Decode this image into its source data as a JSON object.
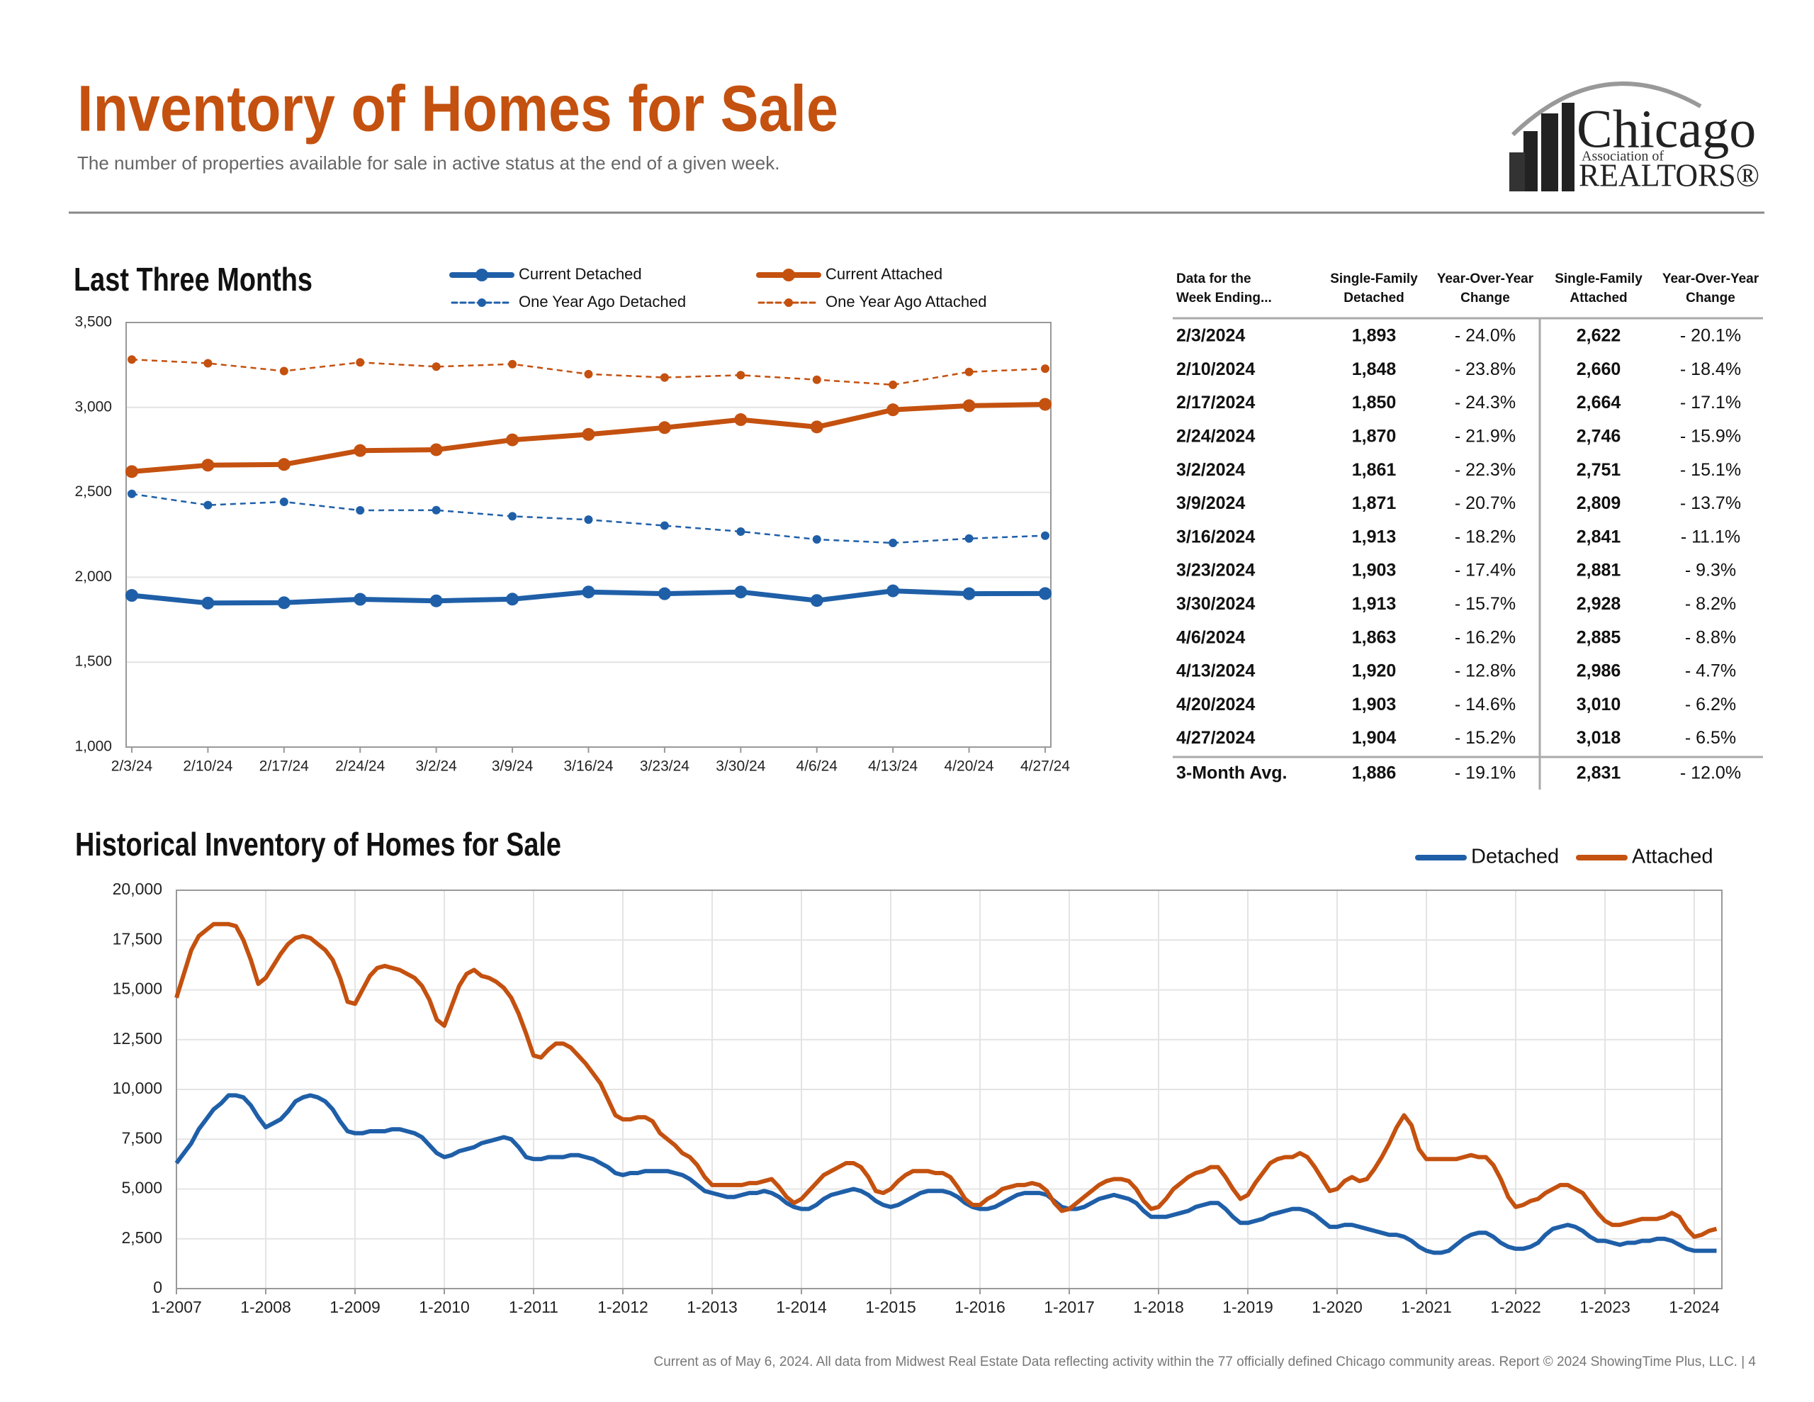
{
  "header": {
    "title": "Inventory of Homes for Sale",
    "subtitle": "The number of properties available for sale in active status at the end of a given week."
  },
  "logo": {
    "name": "Chicago",
    "sub": "Association of",
    "org": "REALTORS®"
  },
  "chart_data": [
    {
      "type": "line",
      "title": "Last Three Months",
      "categories": [
        "2/3/24",
        "2/10/24",
        "2/17/24",
        "2/24/24",
        "3/2/24",
        "3/9/24",
        "3/16/24",
        "3/23/24",
        "3/30/24",
        "4/6/24",
        "4/13/24",
        "4/20/24",
        "4/27/24"
      ],
      "series": [
        {
          "name": "Current Detached",
          "color": "#1f5fa8",
          "dashed": false,
          "values": [
            1893,
            1848,
            1850,
            1870,
            1861,
            1871,
            1913,
            1903,
            1913,
            1863,
            1920,
            1903,
            1904
          ]
        },
        {
          "name": "Current Attached",
          "color": "#c4510f",
          "dashed": false,
          "values": [
            2622,
            2660,
            2664,
            2746,
            2751,
            2809,
            2841,
            2881,
            2928,
            2885,
            2986,
            3010,
            3018
          ]
        },
        {
          "name": "One Year Ago Detached",
          "color": "#1f5fa8",
          "dashed": true,
          "values": [
            2491,
            2425,
            2444,
            2394,
            2395,
            2359,
            2339,
            2304,
            2269,
            2223,
            2202,
            2228,
            2245
          ]
        },
        {
          "name": "One Year Ago Attached",
          "color": "#c4510f",
          "dashed": true,
          "values": [
            3282,
            3260,
            3214,
            3265,
            3240,
            3255,
            3196,
            3176,
            3190,
            3163,
            3133,
            3209,
            3228
          ]
        }
      ],
      "ylim": [
        1000,
        3500
      ],
      "yticks": [
        {
          "value": 1000,
          "label": "1,000"
        },
        {
          "value": 1500,
          "label": "1,500"
        },
        {
          "value": 2000,
          "label": "2,000"
        },
        {
          "value": 2500,
          "label": "2,500"
        },
        {
          "value": 3000,
          "label": "3,000"
        },
        {
          "value": 3500,
          "label": "3,500"
        }
      ],
      "grid": true
    },
    {
      "type": "line",
      "title": "Historical Inventory of Homes for Sale",
      "categories": [
        "1-2007",
        null,
        null,
        null,
        null,
        null,
        null,
        null,
        null,
        null,
        null,
        null,
        "1-2008",
        null,
        null,
        null,
        null,
        null,
        null,
        null,
        null,
        null,
        null,
        null,
        "1-2009",
        null,
        null,
        null,
        null,
        null,
        null,
        null,
        null,
        null,
        null,
        null,
        "1-2010",
        null,
        null,
        null,
        null,
        null,
        null,
        null,
        null,
        null,
        null,
        null,
        "1-2011",
        null,
        null,
        null,
        null,
        null,
        null,
        null,
        null,
        null,
        null,
        null,
        "1-2012",
        null,
        null,
        null,
        null,
        null,
        null,
        null,
        null,
        null,
        null,
        null,
        "1-2013",
        null,
        null,
        null,
        null,
        null,
        null,
        null,
        null,
        null,
        null,
        null,
        "1-2014",
        null,
        null,
        null,
        null,
        null,
        null,
        null,
        null,
        null,
        null,
        null,
        "1-2015",
        null,
        null,
        null,
        null,
        null,
        null,
        null,
        null,
        null,
        null,
        null,
        "1-2016",
        null,
        null,
        null,
        null,
        null,
        null,
        null,
        null,
        null,
        null,
        null,
        "1-2017",
        null,
        null,
        null,
        null,
        null,
        null,
        null,
        null,
        null,
        null,
        null,
        "1-2018",
        null,
        null,
        null,
        null,
        null,
        null,
        null,
        null,
        null,
        null,
        null,
        "1-2019",
        null,
        null,
        null,
        null,
        null,
        null,
        null,
        null,
        null,
        null,
        null,
        "1-2020",
        null,
        null,
        null,
        null,
        null,
        null,
        null,
        null,
        null,
        null,
        null,
        "1-2021",
        null,
        null,
        null,
        null,
        null,
        null,
        null,
        null,
        null,
        null,
        null,
        "1-2022",
        null,
        null,
        null,
        null,
        null,
        null,
        null,
        null,
        null,
        null,
        null,
        "1-2023",
        null,
        null,
        null,
        null,
        null,
        null,
        null,
        null,
        null,
        null,
        null,
        "1-2024",
        null,
        null,
        null
      ],
      "series": [
        {
          "name": "Detached",
          "color": "#1f5fa8",
          "dashed": false,
          "values": [
            6300,
            6800,
            7300,
            8000,
            8500,
            9000,
            9300,
            9700,
            9700,
            9600,
            9200,
            8600,
            8100,
            8300,
            8500,
            8900,
            9400,
            9600,
            9700,
            9600,
            9400,
            9000,
            8400,
            7900,
            7800,
            7800,
            7900,
            7900,
            7900,
            8000,
            8000,
            7900,
            7800,
            7600,
            7200,
            6800,
            6600,
            6700,
            6900,
            7000,
            7100,
            7300,
            7400,
            7500,
            7600,
            7500,
            7100,
            6600,
            6500,
            6500,
            6600,
            6600,
            6600,
            6700,
            6700,
            6600,
            6500,
            6300,
            6100,
            5800,
            5700,
            5800,
            5800,
            5900,
            5900,
            5900,
            5900,
            5800,
            5700,
            5500,
            5200,
            4900,
            4800,
            4700,
            4600,
            4600,
            4700,
            4800,
            4800,
            4900,
            4800,
            4600,
            4300,
            4100,
            4000,
            4000,
            4200,
            4500,
            4700,
            4800,
            4900,
            5000,
            4900,
            4700,
            4400,
            4200,
            4100,
            4200,
            4400,
            4600,
            4800,
            4900,
            4900,
            4900,
            4800,
            4600,
            4300,
            4100,
            4000,
            4000,
            4100,
            4300,
            4500,
            4700,
            4800,
            4800,
            4800,
            4700,
            4400,
            4100,
            4000,
            4000,
            4100,
            4300,
            4500,
            4600,
            4700,
            4600,
            4500,
            4300,
            3900,
            3600,
            3600,
            3600,
            3700,
            3800,
            3900,
            4100,
            4200,
            4300,
            4300,
            4000,
            3600,
            3300,
            3300,
            3400,
            3500,
            3700,
            3800,
            3900,
            4000,
            4000,
            3900,
            3700,
            3400,
            3100,
            3100,
            3200,
            3200,
            3100,
            3000,
            2900,
            2800,
            2700,
            2700,
            2600,
            2400,
            2100,
            1900,
            1800,
            1800,
            1900,
            2200,
            2500,
            2700,
            2800,
            2800,
            2600,
            2300,
            2100,
            2000,
            2000,
            2100,
            2300,
            2700,
            3000,
            3100,
            3200,
            3100,
            2900,
            2600,
            2400,
            2400,
            2300,
            2200,
            2300,
            2300,
            2400,
            2400,
            2500,
            2500,
            2400,
            2200,
            2000,
            1900,
            1900,
            1900,
            1900
          ]
        },
        {
          "name": "Attached",
          "color": "#c4510f",
          "dashed": false,
          "values": [
            14600,
            15800,
            17000,
            17700,
            18000,
            18300,
            18300,
            18300,
            18200,
            17500,
            16500,
            15300,
            15600,
            16200,
            16800,
            17300,
            17600,
            17700,
            17600,
            17300,
            17000,
            16500,
            15600,
            14400,
            14300,
            15000,
            15700,
            16100,
            16200,
            16100,
            16000,
            15800,
            15600,
            15200,
            14500,
            13500,
            13200,
            14200,
            15200,
            15800,
            16000,
            15700,
            15600,
            15400,
            15100,
            14600,
            13800,
            12800,
            11700,
            11600,
            12000,
            12300,
            12300,
            12100,
            11700,
            11300,
            10800,
            10300,
            9500,
            8700,
            8500,
            8500,
            8600,
            8600,
            8400,
            7800,
            7500,
            7200,
            6800,
            6600,
            6200,
            5600,
            5200,
            5200,
            5200,
            5200,
            5200,
            5300,
            5300,
            5400,
            5500,
            5100,
            4600,
            4300,
            4500,
            4900,
            5300,
            5700,
            5900,
            6100,
            6300,
            6300,
            6100,
            5600,
            4900,
            4800,
            5000,
            5400,
            5700,
            5900,
            5900,
            5900,
            5800,
            5800,
            5600,
            5100,
            4500,
            4200,
            4200,
            4500,
            4700,
            5000,
            5100,
            5200,
            5200,
            5300,
            5200,
            4900,
            4300,
            3900,
            4000,
            4300,
            4600,
            4900,
            5200,
            5400,
            5500,
            5500,
            5400,
            5000,
            4400,
            4000,
            4100,
            4500,
            5000,
            5300,
            5600,
            5800,
            5900,
            6100,
            6100,
            5600,
            5000,
            4500,
            4700,
            5300,
            5800,
            6300,
            6500,
            6600,
            6600,
            6800,
            6600,
            6100,
            5500,
            4900,
            5000,
            5400,
            5600,
            5400,
            5500,
            6000,
            6600,
            7300,
            8100,
            8700,
            8200,
            7000,
            6500,
            6500,
            6500,
            6500,
            6500,
            6600,
            6700,
            6600,
            6600,
            6200,
            5500,
            4600,
            4100,
            4200,
            4400,
            4500,
            4800,
            5000,
            5200,
            5200,
            5000,
            4800,
            4300,
            3800,
            3400,
            3200,
            3200,
            3300,
            3400,
            3500,
            3500,
            3500,
            3600,
            3800,
            3600,
            3000,
            2600,
            2700,
            2900,
            3000
          ]
        }
      ],
      "ylim": [
        0,
        20000
      ],
      "yticks": [
        0,
        {
          "value": 2500,
          "label": "2,500"
        },
        {
          "value": 5000,
          "label": "5,000"
        },
        {
          "value": 7500,
          "label": "7,500"
        },
        {
          "value": 10000,
          "label": "10,000"
        },
        {
          "value": 12500,
          "label": "12,500"
        },
        {
          "value": 15000,
          "label": "15,000"
        },
        {
          "value": 17500,
          "label": "17,500"
        },
        {
          "value": 20000,
          "label": "20,000"
        }
      ],
      "grid": true
    }
  ],
  "table": {
    "headers": [
      [
        "Data for the",
        "Week Ending..."
      ],
      [
        "Single-Family",
        "Detached"
      ],
      [
        "Year-Over-Year",
        "Change"
      ],
      [
        "Single-Family",
        "Attached"
      ],
      [
        "Year-Over-Year",
        "Change"
      ]
    ],
    "rows": [
      [
        "2/3/2024",
        "1,893",
        "- 24.0%",
        "2,622",
        "- 20.1%"
      ],
      [
        "2/10/2024",
        "1,848",
        "- 23.8%",
        "2,660",
        "- 18.4%"
      ],
      [
        "2/17/2024",
        "1,850",
        "- 24.3%",
        "2,664",
        "- 17.1%"
      ],
      [
        "2/24/2024",
        "1,870",
        "- 21.9%",
        "2,746",
        "- 15.9%"
      ],
      [
        "3/2/2024",
        "1,861",
        "- 22.3%",
        "2,751",
        "- 15.1%"
      ],
      [
        "3/9/2024",
        "1,871",
        "- 20.7%",
        "2,809",
        "- 13.7%"
      ],
      [
        "3/16/2024",
        "1,913",
        "- 18.2%",
        "2,841",
        "- 11.1%"
      ],
      [
        "3/23/2024",
        "1,903",
        "- 17.4%",
        "2,881",
        "- 9.3%"
      ],
      [
        "3/30/2024",
        "1,913",
        "- 15.7%",
        "2,928",
        "- 8.2%"
      ],
      [
        "4/6/2024",
        "1,863",
        "- 16.2%",
        "2,885",
        "- 8.8%"
      ],
      [
        "4/13/2024",
        "1,920",
        "- 12.8%",
        "2,986",
        "- 4.7%"
      ],
      [
        "4/20/2024",
        "1,903",
        "- 14.6%",
        "3,010",
        "- 6.2%"
      ],
      [
        "4/27/2024",
        "1,904",
        "- 15.2%",
        "3,018",
        "- 6.5%"
      ]
    ],
    "summary": [
      "3-Month Avg.",
      "1,886",
      "- 19.1%",
      "2,831",
      "- 12.0%"
    ]
  },
  "footer": "Current as of May 6, 2024.  All data from Midwest Real Estate Data reflecting activity within the 77 officially defined Chicago community areas. Report © 2024 ShowingTime Plus, LLC.  |  4"
}
